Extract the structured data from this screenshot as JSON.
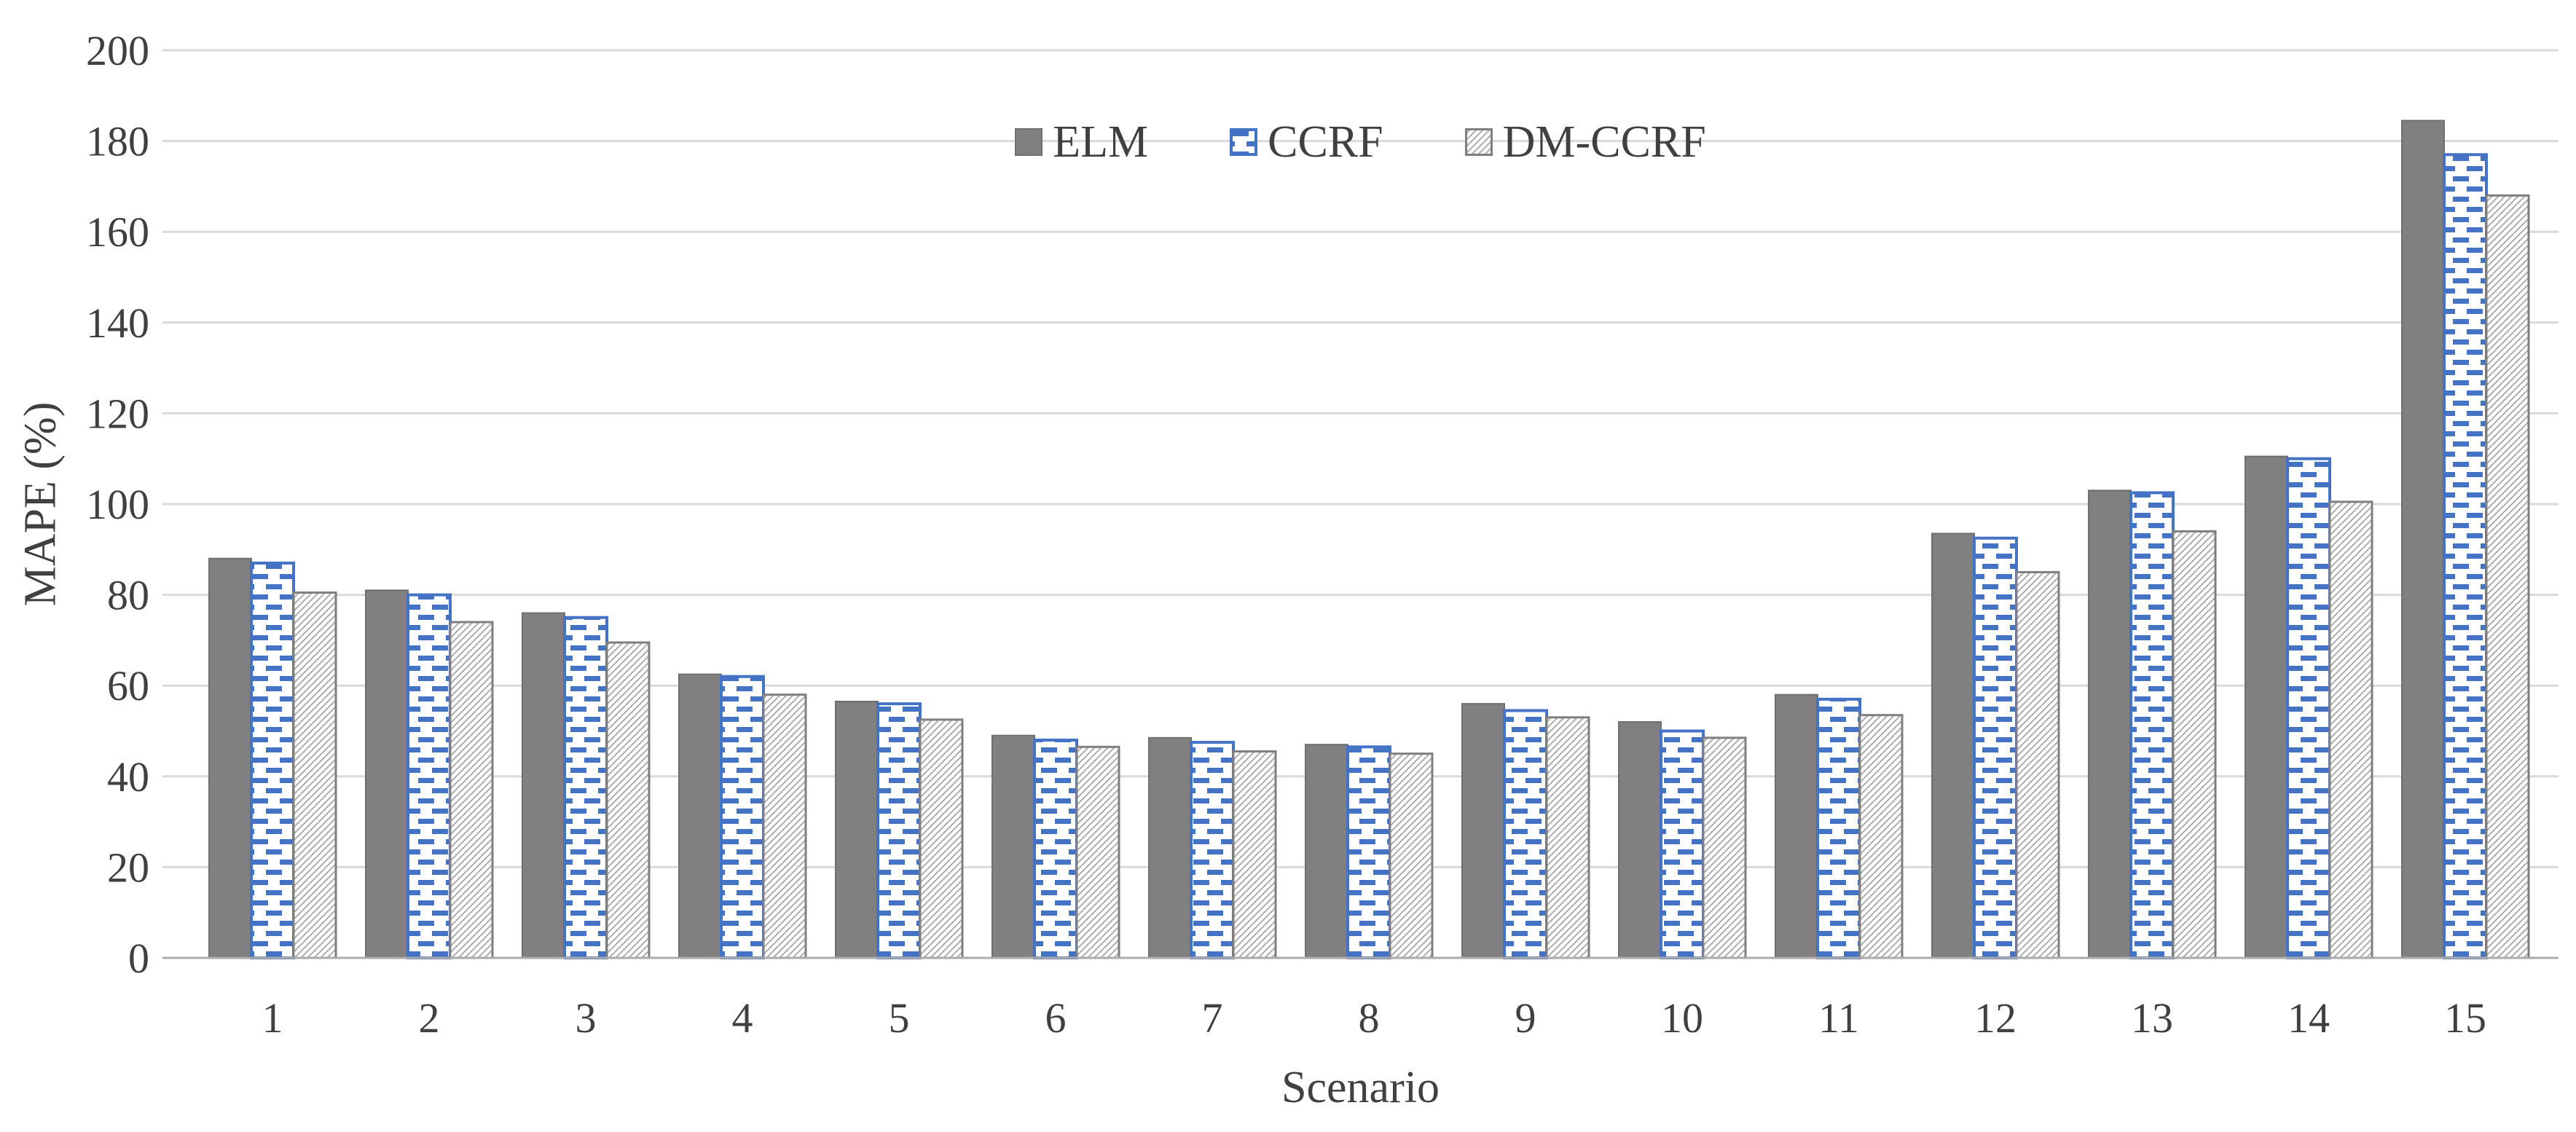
{
  "chart_data": {
    "type": "bar",
    "title": "",
    "xlabel": "Scenario",
    "ylabel": "MAPE (%)",
    "ylim": [
      0,
      200
    ],
    "yticks": [
      0,
      20,
      40,
      60,
      80,
      100,
      120,
      140,
      160,
      180,
      200
    ],
    "grid": true,
    "legend_position": "top-center",
    "background": "#ffffff",
    "gridline_color": "#d9d9d9",
    "baseline_color": "#ababab",
    "text_color": "#404040",
    "categories": [
      "1",
      "2",
      "3",
      "4",
      "5",
      "6",
      "7",
      "8",
      "9",
      "10",
      "11",
      "12",
      "13",
      "14",
      "15"
    ],
    "series": [
      {
        "name": "ELM",
        "style": "solid",
        "fill_color": "#808080",
        "border_color": "#6f6f6f",
        "values": [
          88,
          81,
          76,
          62.5,
          56.5,
          49,
          48.5,
          47,
          56,
          52,
          58,
          93.5,
          103,
          110.5,
          184.5
        ]
      },
      {
        "name": "CCRF",
        "style": "blue-dash-pattern",
        "fill_color": "#ffffff",
        "pattern_color": "#4472C4",
        "border_color": "#4472C4",
        "values": [
          87,
          80,
          75,
          62,
          56,
          48,
          47.5,
          46.5,
          54.5,
          50,
          57,
          92.5,
          102.5,
          110,
          177
        ]
      },
      {
        "name": "DM-CCRF",
        "style": "diagonal-hatch-pattern",
        "fill_color": "#ffffff",
        "pattern_color": "#adadad",
        "border_color": "#7f7f7f",
        "values": [
          80.5,
          74,
          69.5,
          58,
          52.5,
          46.5,
          45.5,
          45,
          53,
          48.5,
          53.5,
          85,
          94,
          100.5,
          168
        ]
      }
    ]
  }
}
